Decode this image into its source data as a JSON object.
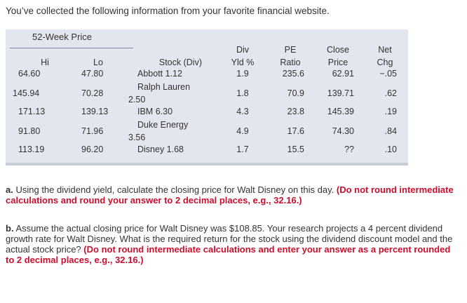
{
  "intro": "You’ve collected the following information from your favorite financial website.",
  "table": {
    "group_title": "52-Week Price",
    "headers": {
      "hi": "Hi",
      "lo": "Lo",
      "stock": "Stock (Div)",
      "div1": "Div",
      "div2": "Yld %",
      "pe1": "PE",
      "pe2": "Ratio",
      "close1": "Close",
      "close2": "Price",
      "net1": "Net",
      "net2": "Chg"
    },
    "rows": [
      {
        "hi": "64.60",
        "lo": "47.80",
        "stock1": "Abbott 1.12",
        "stock2": "",
        "yld": "1.9",
        "pe": "235.6",
        "close": "62.91",
        "net": "−.05"
      },
      {
        "hi": "145.94",
        "lo": "70.28",
        "stock1": "Ralph Lauren",
        "stock2": "2.50",
        "yld": "1.8",
        "pe": "70.9",
        "close": "139.71",
        "net": ".62"
      },
      {
        "hi": "171.13",
        "lo": "139.13",
        "stock1": "IBM 6.30",
        "stock2": "",
        "yld": "4.3",
        "pe": "23.8",
        "close": "145.39",
        "net": ".19"
      },
      {
        "hi": "91.80",
        "lo": "71.96",
        "stock1": "Duke Energy",
        "stock2": "3.56",
        "yld": "4.9",
        "pe": "17.6",
        "close": "74.30",
        "net": ".84"
      },
      {
        "hi": "113.19",
        "lo": "96.20",
        "stock1": "Disney 1.68",
        "stock2": "",
        "yld": "1.7",
        "pe": "15.5",
        "close": "??",
        "net": ".10"
      }
    ]
  },
  "questions": {
    "a": {
      "label": "a.",
      "text": "Using the dividend yield, calculate the closing price for Walt Disney on this day.",
      "note": "(Do not round intermediate calculations and round your answer to 2 decimal places, e.g., 32.16.)"
    },
    "b": {
      "label": "b.",
      "text": "Assume the actual closing price for Walt Disney was $108.85. Your research projects a 4 percent dividend growth rate for Walt Disney. What is the required return for the stock using the dividend discount model and the actual stock price?",
      "note": "(Do not round intermediate calculations and enter your answer as a percent rounded to 2 decimal places, e.g., 32.16.)"
    }
  }
}
